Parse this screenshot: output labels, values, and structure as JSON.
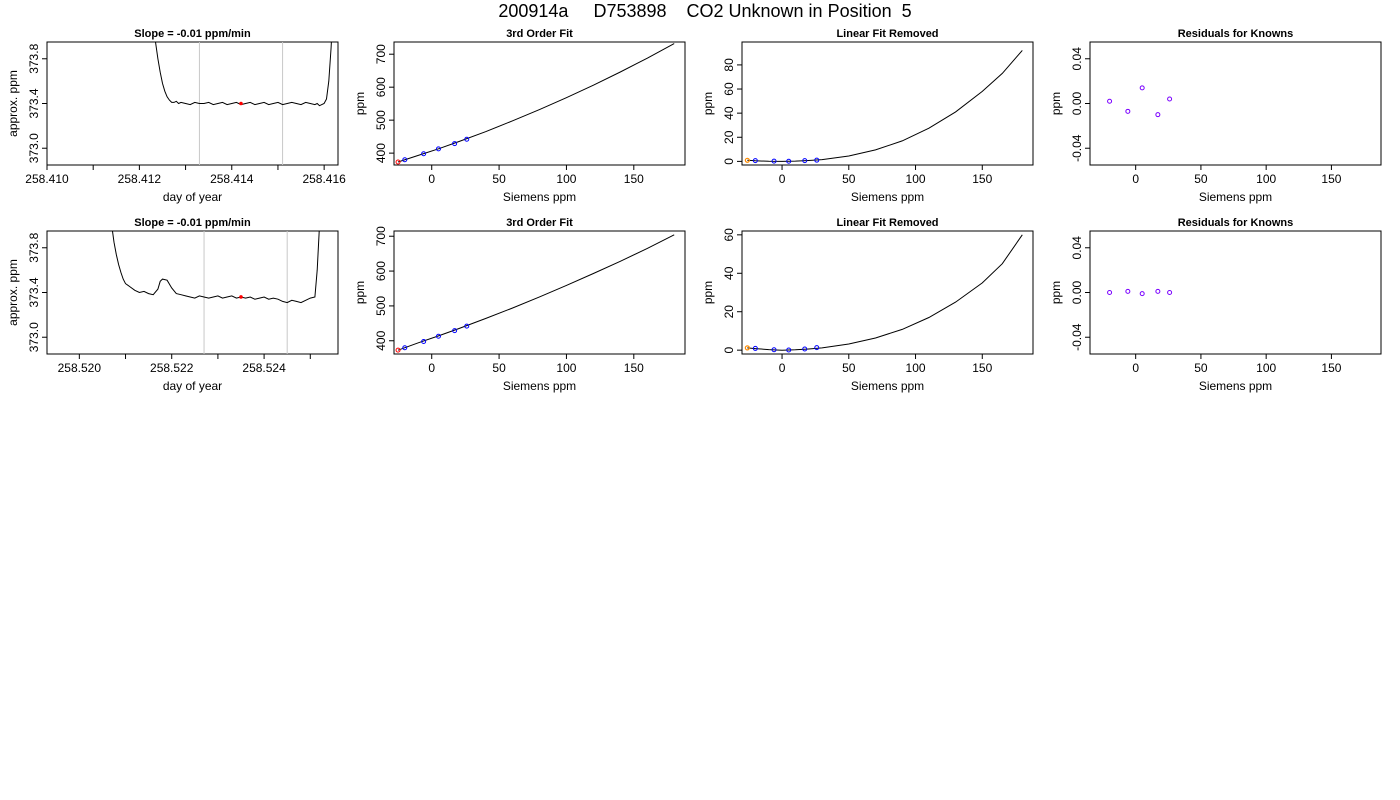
{
  "page": {
    "title": "200914a     D753898    CO2 Unknown in Position  5"
  },
  "colors": {
    "axis": "#000000",
    "line": "#000000",
    "guide": "#c8c8c8",
    "known_point": "#0000ff",
    "unknown_point": "#ff0000",
    "residual_point": "#7a00ff",
    "removed_point": "#ff8c00"
  },
  "chart_data": [
    {
      "type": "line",
      "title": "Slope =  -0.01  ppm/min",
      "xlabel": "day of year",
      "ylabel": "approx. ppm",
      "xlim": [
        258.41,
        258.4163
      ],
      "ylim": [
        372.85,
        373.95
      ],
      "xticks": [
        "258.410",
        "258.412",
        "258.414",
        "258.416"
      ],
      "xtick_values": [
        258.41,
        258.412,
        258.414,
        258.416
      ],
      "xminor_ticks": [
        258.411,
        258.413,
        258.415
      ],
      "yticks": [
        "373.0",
        "373.4",
        "373.8"
      ],
      "ytick_values": [
        373.0,
        373.4,
        373.8
      ],
      "vlines": [
        258.4133,
        258.4151
      ],
      "series": [
        {
          "x": [
            258.4123,
            258.41235,
            258.4124,
            258.41245,
            258.4125,
            258.41255,
            258.4126,
            258.41265,
            258.4127,
            258.41275,
            258.4128,
            258.41285,
            258.4129,
            258.413,
            258.4131,
            258.4132,
            258.4133,
            258.4134,
            258.4135,
            258.4136,
            258.4137,
            258.4138,
            258.4139,
            258.414,
            258.4141,
            258.4142,
            258.4143,
            258.4144,
            258.4145,
            258.4146,
            258.4147,
            258.4148,
            258.4149,
            258.415,
            258.4151,
            258.4152,
            258.4153,
            258.4154,
            258.4155,
            258.4156,
            258.4157,
            258.4158,
            258.41585,
            258.4159,
            258.41595,
            258.416,
            258.41605,
            258.4161,
            258.41615,
            258.4162
          ],
          "y": [
            374.2,
            373.95,
            373.8,
            373.68,
            373.58,
            373.51,
            373.46,
            373.43,
            373.41,
            373.41,
            373.42,
            373.4,
            373.41,
            373.4,
            373.39,
            373.41,
            373.4,
            373.4,
            373.41,
            373.39,
            373.4,
            373.41,
            373.39,
            373.4,
            373.41,
            373.39,
            373.4,
            373.41,
            373.39,
            373.4,
            373.41,
            373.39,
            373.4,
            373.41,
            373.39,
            373.4,
            373.41,
            373.4,
            373.39,
            373.41,
            373.4,
            373.39,
            373.4,
            373.38,
            373.39,
            373.4,
            373.44,
            373.6,
            373.9,
            374.3
          ]
        }
      ],
      "marker": {
        "x": 258.4142,
        "y": 373.4
      }
    },
    {
      "type": "line",
      "title": "3rd Order Fit",
      "xlabel": "Siemens ppm",
      "ylabel": "ppm",
      "xlim": [
        -28,
        188
      ],
      "ylim": [
        364,
        737
      ],
      "xticks": [
        "0",
        "50",
        "100",
        "150"
      ],
      "xtick_values": [
        0,
        50,
        100,
        150
      ],
      "yticks": [
        "400",
        "500",
        "600",
        "700"
      ],
      "ytick_values": [
        400,
        500,
        600,
        700
      ],
      "curve": {
        "x": [
          -25,
          -10,
          5,
          20,
          40,
          60,
          80,
          100,
          120,
          140,
          160,
          180
        ],
        "y": [
          373,
          393,
          413,
          435,
          465,
          498,
          532,
          568,
          606,
          646,
          688,
          732
        ]
      },
      "knowns": {
        "x": [
          -20,
          -6,
          5,
          17,
          26
        ],
        "y": [
          380,
          398,
          413,
          429,
          442
        ]
      },
      "unknown": {
        "x": -25,
        "y": 373
      }
    },
    {
      "type": "line",
      "title": "Linear Fit Removed",
      "xlabel": "Siemens ppm",
      "ylabel": "ppm",
      "xlim": [
        -30,
        188
      ],
      "ylim": [
        -3,
        99
      ],
      "xticks": [
        "0",
        "50",
        "100",
        "150"
      ],
      "xtick_values": [
        0,
        50,
        100,
        150
      ],
      "yticks": [
        "0",
        "20",
        "40",
        "60",
        "80"
      ],
      "ytick_values": [
        0,
        20,
        40,
        60,
        80
      ],
      "curve": {
        "x": [
          -26,
          -20,
          -10,
          0,
          10,
          20,
          30,
          50,
          70,
          90,
          110,
          130,
          150,
          165,
          180
        ],
        "y": [
          0.9,
          0.5,
          0.1,
          0.0,
          0.2,
          0.7,
          1.5,
          4.5,
          9.5,
          17,
          27.5,
          41,
          58,
          73,
          92
        ]
      },
      "knowns": {
        "x": [
          -20,
          -6,
          5,
          17,
          26
        ],
        "y": [
          0.6,
          0.2,
          0.1,
          0.6,
          1.0
        ]
      },
      "removed": {
        "x": -26,
        "y": 0.9
      }
    },
    {
      "type": "scatter",
      "title": "Residuals for Knowns",
      "xlabel": "Siemens ppm",
      "ylabel": "ppm",
      "xlim": [
        -35,
        188
      ],
      "ylim": [
        -0.055,
        0.055
      ],
      "xticks": [
        "0",
        "50",
        "100",
        "150"
      ],
      "xtick_values": [
        0,
        50,
        100,
        150
      ],
      "yticks": [
        "-0.04",
        "0.00",
        "0.04"
      ],
      "ytick_values": [
        -0.04,
        0.0,
        0.04
      ],
      "points": {
        "x": [
          -20,
          -6,
          5,
          17,
          26
        ],
        "y": [
          0.002,
          -0.007,
          0.014,
          -0.01,
          0.004
        ]
      }
    },
    {
      "type": "line",
      "title": "Slope =  -0.01  ppm/min",
      "xlabel": "day of year",
      "ylabel": "approx. ppm",
      "xlim": [
        258.5193,
        258.5256
      ],
      "ylim": [
        372.85,
        373.95
      ],
      "xticks": [
        "258.520",
        "258.522",
        "258.524"
      ],
      "xtick_values": [
        258.52,
        258.522,
        258.524
      ],
      "xminor_ticks": [
        258.521,
        258.523,
        258.525
      ],
      "yticks": [
        "373.0",
        "373.4",
        "373.8"
      ],
      "ytick_values": [
        373.0,
        373.4,
        373.8
      ],
      "vlines": [
        258.5227,
        258.5245
      ],
      "series": [
        {
          "x": [
            258.5207,
            258.52075,
            258.5208,
            258.52085,
            258.5209,
            258.52095,
            258.521,
            258.5211,
            258.5212,
            258.5213,
            258.5214,
            258.5215,
            258.5216,
            258.5217,
            258.52175,
            258.5218,
            258.5219,
            258.522,
            258.5221,
            258.5222,
            258.5223,
            258.5224,
            258.5225,
            258.5226,
            258.5227,
            258.5228,
            258.5229,
            258.523,
            258.5231,
            258.5232,
            258.5233,
            258.5234,
            258.5235,
            258.5236,
            258.5237,
            258.5238,
            258.5239,
            258.524,
            258.5241,
            258.5242,
            258.5243,
            258.5244,
            258.5245,
            258.5246,
            258.5247,
            258.5248,
            258.5249,
            258.525,
            258.5251,
            258.52515,
            258.5252,
            258.52525
          ],
          "y": [
            374.0,
            373.85,
            373.74,
            373.65,
            373.58,
            373.52,
            373.48,
            373.45,
            373.42,
            373.4,
            373.41,
            373.39,
            373.38,
            373.43,
            373.5,
            373.52,
            373.51,
            373.44,
            373.39,
            373.38,
            373.37,
            373.36,
            373.35,
            373.37,
            373.36,
            373.35,
            373.36,
            373.37,
            373.35,
            373.36,
            373.37,
            373.35,
            373.36,
            373.35,
            373.36,
            373.34,
            373.35,
            373.36,
            373.34,
            373.35,
            373.34,
            373.32,
            373.31,
            373.33,
            373.32,
            373.31,
            373.33,
            373.35,
            373.36,
            373.6,
            374.0,
            374.3
          ]
        }
      ],
      "marker": {
        "x": 258.5235,
        "y": 373.36
      }
    },
    {
      "type": "line",
      "title": "3rd Order Fit",
      "xlabel": "Siemens ppm",
      "ylabel": "ppm",
      "xlim": [
        -28,
        188
      ],
      "ylim": [
        362,
        715
      ],
      "xticks": [
        "0",
        "50",
        "100",
        "150"
      ],
      "xtick_values": [
        0,
        50,
        100,
        150
      ],
      "yticks": [
        "400",
        "500",
        "600",
        "700"
      ],
      "ytick_values": [
        400,
        500,
        600,
        700
      ],
      "curve": {
        "x": [
          -25,
          -10,
          5,
          20,
          40,
          60,
          80,
          100,
          120,
          140,
          160,
          180
        ],
        "y": [
          373,
          394,
          414,
          435,
          464,
          494,
          526,
          559,
          593,
          628,
          665,
          704
        ]
      },
      "knowns": {
        "x": [
          -20,
          -6,
          5,
          17,
          26
        ],
        "y": [
          380,
          398,
          413,
          429,
          442
        ]
      },
      "unknown": {
        "x": -25,
        "y": 373
      }
    },
    {
      "type": "line",
      "title": "Linear Fit Removed",
      "xlabel": "Siemens ppm",
      "ylabel": "ppm",
      "xlim": [
        -30,
        188
      ],
      "ylim": [
        -2,
        62
      ],
      "xticks": [
        "0",
        "50",
        "100",
        "150"
      ],
      "xtick_values": [
        0,
        50,
        100,
        150
      ],
      "yticks": [
        "0",
        "20",
        "40",
        "60"
      ],
      "ytick_values": [
        0,
        20,
        40,
        60
      ],
      "curve": {
        "x": [
          -26,
          -20,
          -10,
          0,
          10,
          20,
          30,
          50,
          70,
          90,
          110,
          130,
          150,
          165,
          180
        ],
        "y": [
          1.2,
          0.8,
          0.3,
          0.0,
          0.2,
          0.6,
          1.2,
          3.2,
          6.3,
          10.8,
          17,
          25,
          35,
          45,
          60
        ]
      },
      "knowns": {
        "x": [
          -20,
          -6,
          5,
          17,
          26
        ],
        "y": [
          0.9,
          0.2,
          0.1,
          0.6,
          1.3
        ]
      },
      "removed": {
        "x": -26,
        "y": 1.2
      }
    },
    {
      "type": "scatter",
      "title": "Residuals for Knowns",
      "xlabel": "Siemens ppm",
      "ylabel": "ppm",
      "xlim": [
        -35,
        188
      ],
      "ylim": [
        -0.055,
        0.055
      ],
      "xticks": [
        "0",
        "50",
        "100",
        "150"
      ],
      "xtick_values": [
        0,
        50,
        100,
        150
      ],
      "yticks": [
        "-0.04",
        "0.00",
        "0.04"
      ],
      "ytick_values": [
        -0.04,
        0.0,
        0.04
      ],
      "points": {
        "x": [
          -20,
          -6,
          5,
          17,
          26
        ],
        "y": [
          0.0,
          0.001,
          -0.001,
          0.001,
          0.0
        ]
      }
    }
  ]
}
